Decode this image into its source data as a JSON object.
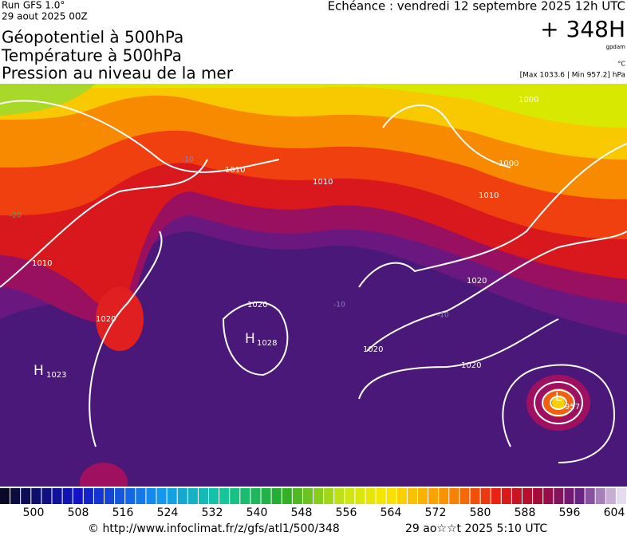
{
  "header": {
    "run": "Run GFS 1.0°",
    "run_date": "29 aout 2025 00Z",
    "titles": [
      "Géopotentiel à 500hPa",
      "Température à 500hPa",
      "Pression au niveau de la mer"
    ],
    "valid": "Echéance : vendredi 12 septembre 2025 12h UTC",
    "lead": "+ 348H",
    "unit_geo": "gpdam",
    "unit_temp": "°C",
    "pressure_range": "[Max 1033.6 | Min 957.2] hPa"
  },
  "map": {
    "labels": [
      "1010",
      "1010",
      "1010",
      "1000",
      "1000",
      "1010",
      "1020",
      "1020",
      "1020",
      "1020",
      "1020",
      "1028",
      "1023",
      "957",
      "H",
      "H",
      "L",
      "-10",
      "-20",
      "-10",
      "-10"
    ]
  },
  "legend": {
    "ticks": [
      500,
      508,
      516,
      524,
      532,
      540,
      548,
      556,
      564,
      572,
      580,
      588,
      596,
      604
    ]
  },
  "footer": {
    "source": "© http://www.infoclimat.fr/z/gfs/atl1/500/348",
    "generated": "29 ao☆☆t 2025  5:10 UTC"
  }
}
